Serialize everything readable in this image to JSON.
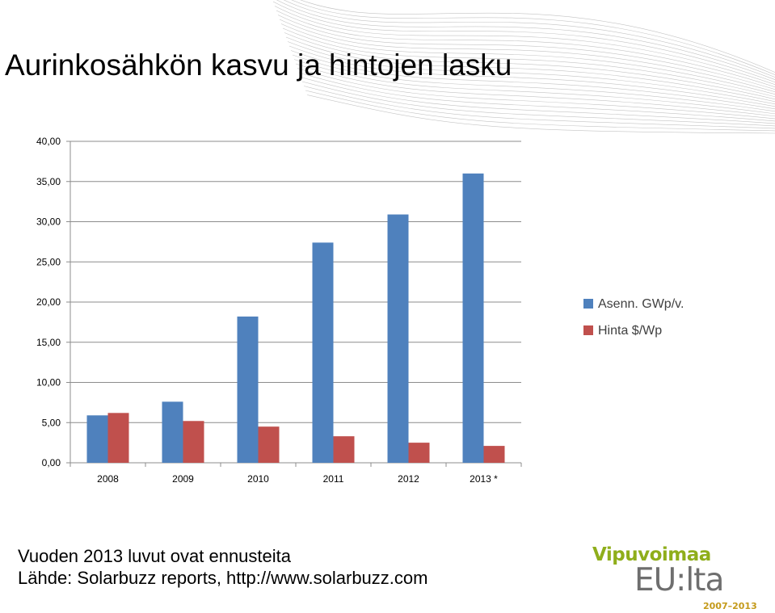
{
  "slide": {
    "title": "Aurinkosähkön kasvu ja hintojen lasku",
    "footnote_line1": "Vuoden 2013 luvut ovat ennusteita",
    "footnote_line2": "Lähde: Solarbuzz reports, http://www.solarbuzz.com"
  },
  "logo": {
    "line1": "Vipuvoimaa",
    "line2": "EU:lta",
    "years": "2007–2013"
  },
  "chart_data": {
    "type": "bar",
    "categories": [
      "2008",
      "2009",
      "2010",
      "2011",
      "2012",
      "2013 *"
    ],
    "series": [
      {
        "name": "Asenn. GWp/v.",
        "values": [
          5.9,
          7.6,
          18.2,
          27.4,
          30.9,
          36.0
        ],
        "color": "#4f81bd"
      },
      {
        "name": "Hinta $/Wp",
        "values": [
          6.2,
          5.2,
          4.5,
          3.3,
          2.5,
          2.1
        ],
        "color": "#c0504d"
      }
    ],
    "ylim": [
      0,
      40
    ],
    "yticks": [
      "0,00",
      "5,00",
      "10,00",
      "15,00",
      "20,00",
      "25,00",
      "30,00",
      "35,00",
      "40,00"
    ],
    "grid": true,
    "legend_position": "right"
  }
}
